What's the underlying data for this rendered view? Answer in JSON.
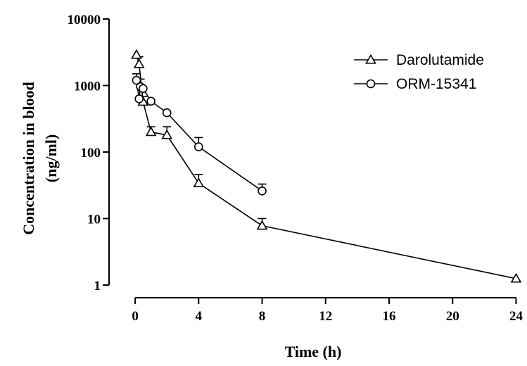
{
  "chart_data": {
    "type": "line",
    "xlabel": "Time (h)",
    "ylabel_line1": "Concentration in blood",
    "ylabel_line2": "(ng/ml)",
    "x_scale": "linear",
    "y_scale": "log",
    "xlim": [
      -1.2,
      24.2
    ],
    "ylim": [
      1,
      10000
    ],
    "x_ticks": [
      0,
      4,
      8,
      12,
      16,
      20,
      24
    ],
    "x_tick_labels": [
      "0",
      "4",
      "8",
      "12",
      "16",
      "20",
      "24"
    ],
    "y_ticks": [
      1,
      10,
      100,
      1000,
      10000
    ],
    "y_tick_labels": [
      "1",
      "10",
      "100",
      "1000",
      "10000"
    ],
    "grid": false,
    "legend_position": "top-right",
    "series": [
      {
        "name": "Darolutamide",
        "marker": "triangle",
        "x": [
          0.083,
          0.25,
          0.5,
          1,
          2,
          4,
          8,
          24
        ],
        "y": [
          2900,
          2100,
          570,
          200,
          180,
          34,
          7.8,
          1.25
        ],
        "err_upper": [
          null,
          2700,
          680,
          240,
          240,
          46,
          10,
          null
        ]
      },
      {
        "name": "ORM-15341",
        "marker": "circle",
        "x": [
          0.083,
          0.25,
          0.333,
          0.5,
          1,
          2,
          4,
          8
        ],
        "y": [
          1200,
          630,
          960,
          900,
          580,
          390,
          120,
          26
        ],
        "err_upper": [
          1500,
          null,
          1250,
          null,
          null,
          null,
          165,
          33
        ]
      }
    ]
  }
}
